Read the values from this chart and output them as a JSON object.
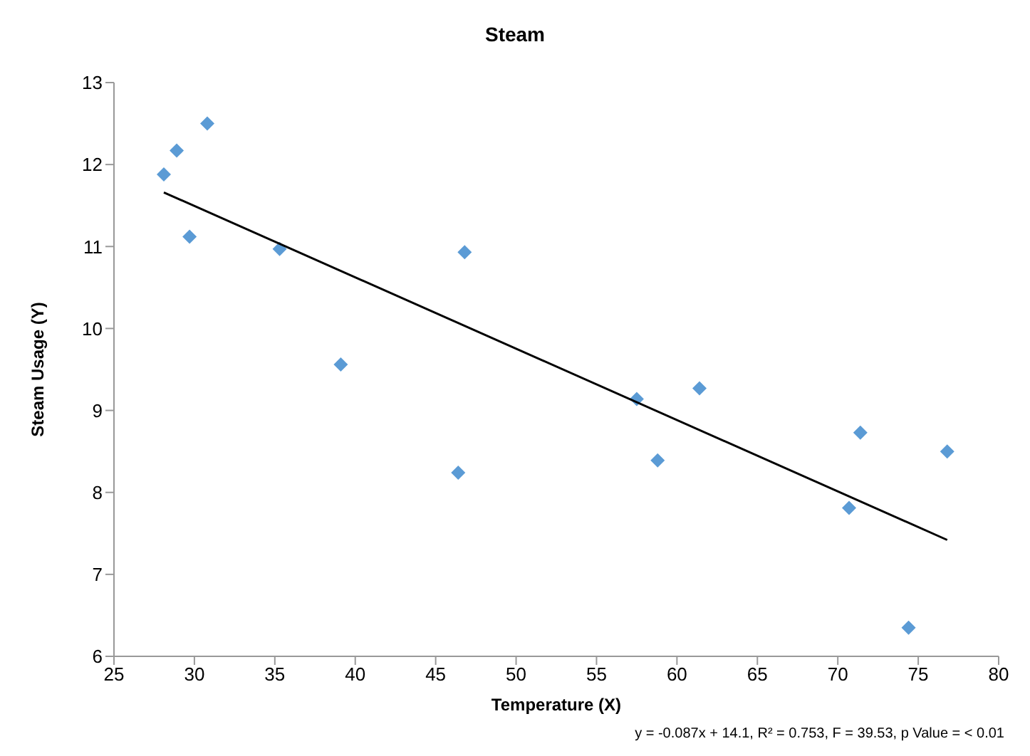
{
  "chart_data": {
    "type": "scatter",
    "title": "Steam",
    "xlabel": "Temperature (X)",
    "ylabel": "Steam Usage (Y)",
    "xlim": [
      25,
      80
    ],
    "xticks": [
      25,
      30,
      35,
      40,
      45,
      50,
      55,
      60,
      65,
      70,
      75,
      80
    ],
    "ylim": [
      6,
      13
    ],
    "yticks": [
      6,
      7,
      8,
      9,
      10,
      11,
      12,
      13
    ],
    "marker": "diamond",
    "annotations": [
      "y = -0.087x + 14.1, R² = 0.753, F = 39.53, p Value = < 0.01"
    ],
    "series": [
      {
        "color": "#5b9bd5",
        "x": [
          28.1,
          28.9,
          29.7,
          30.8,
          35.3,
          39.1,
          46.4,
          46.8,
          57.5,
          58.8,
          61.4,
          70.7,
          71.4,
          74.4,
          76.8
        ],
        "values": [
          11.88,
          12.17,
          11.12,
          12.5,
          10.97,
          9.56,
          8.24,
          10.93,
          9.14,
          8.39,
          9.27,
          7.81,
          8.73,
          6.35,
          8.5
        ]
      },
      {
        "type": "line",
        "color": "#000000",
        "x": [
          28.1,
          76.8
        ],
        "values": [
          11.66,
          7.42
        ],
        "marker": "none",
        "line_style": "solid"
      }
    ]
  }
}
